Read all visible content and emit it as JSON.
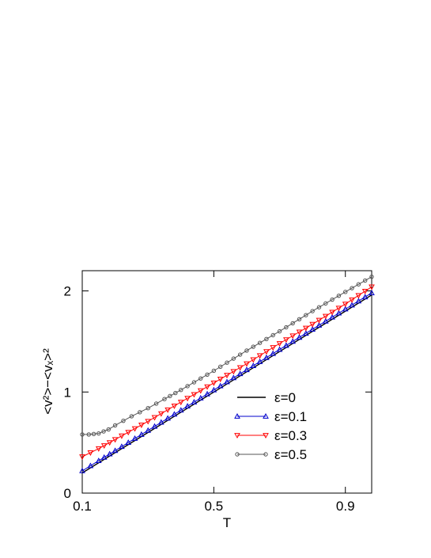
{
  "chart_data": {
    "type": "line",
    "title": "",
    "xlabel": "T",
    "ylabel": "<v²>−<vₓ>²",
    "xlim": [
      0.1,
      0.98
    ],
    "ylim": [
      0,
      2.2
    ],
    "xticks": [
      0.1,
      0.5,
      0.9
    ],
    "xtick_labels": [
      "0.1",
      "0.5",
      "0.9"
    ],
    "yticks": [
      0,
      1,
      2
    ],
    "ytick_labels": [
      "0",
      "1",
      "2"
    ],
    "grid": false,
    "legend_position": "lower-right",
    "series": [
      {
        "name": "ε=0",
        "color": "#000000",
        "marker": "none",
        "x": [
          0.1,
          0.2,
          0.3,
          0.4,
          0.5,
          0.6,
          0.7,
          0.8,
          0.9,
          0.98
        ],
        "y": [
          0.2,
          0.4,
          0.6,
          0.8,
          1.0,
          1.2,
          1.4,
          1.6,
          1.8,
          1.96
        ]
      },
      {
        "name": "ε=0.1",
        "color": "#0000cc",
        "marker": "triangle-up",
        "x": [
          0.1,
          0.15,
          0.2,
          0.3,
          0.4,
          0.5,
          0.6,
          0.7,
          0.8,
          0.9,
          0.98
        ],
        "y": [
          0.22,
          0.32,
          0.42,
          0.62,
          0.82,
          1.02,
          1.22,
          1.42,
          1.62,
          1.82,
          1.98
        ]
      },
      {
        "name": "ε=0.3",
        "color": "#ff0000",
        "marker": "triangle-down",
        "x": [
          0.1,
          0.15,
          0.2,
          0.3,
          0.4,
          0.5,
          0.6,
          0.7,
          0.8,
          0.9,
          0.98
        ],
        "y": [
          0.36,
          0.44,
          0.53,
          0.71,
          0.9,
          1.09,
          1.28,
          1.48,
          1.67,
          1.87,
          2.04
        ]
      },
      {
        "name": "ε=0.5",
        "color": "#555555",
        "marker": "circle",
        "x": [
          0.1,
          0.12,
          0.15,
          0.18,
          0.2,
          0.25,
          0.3,
          0.35,
          0.4,
          0.5,
          0.6,
          0.7,
          0.8,
          0.9,
          0.98
        ],
        "y": [
          0.58,
          0.58,
          0.59,
          0.63,
          0.67,
          0.76,
          0.84,
          0.93,
          1.02,
          1.21,
          1.41,
          1.6,
          1.8,
          1.99,
          2.14
        ]
      }
    ]
  }
}
